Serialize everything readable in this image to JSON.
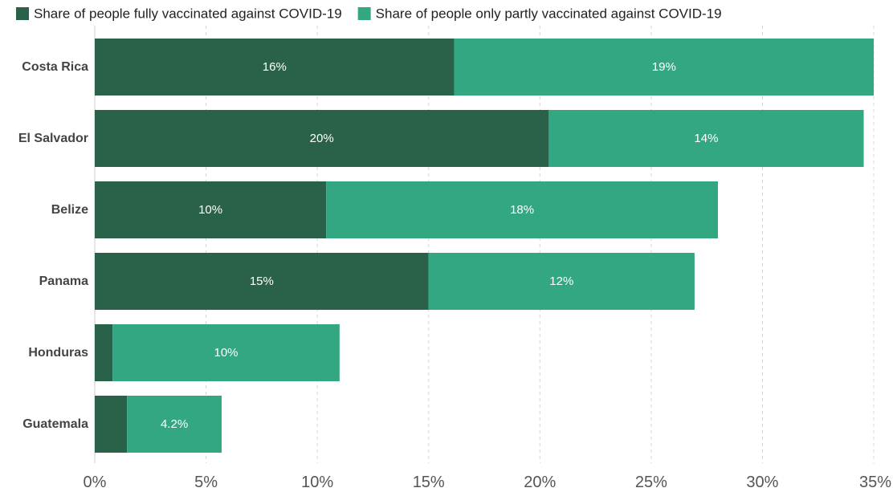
{
  "chart_data": {
    "type": "bar",
    "orientation": "horizontal",
    "stacked": true,
    "title": "",
    "xlabel": "",
    "ylabel": "",
    "xlim": [
      0,
      35
    ],
    "tick_values": [
      0,
      5,
      10,
      15,
      20,
      25,
      30,
      35
    ],
    "tick_labels": [
      "0%",
      "5%",
      "10%",
      "15%",
      "20%",
      "25%",
      "30%",
      "35%"
    ],
    "grid": "vertical dashed",
    "legend_position": "top-left",
    "categories": [
      "Costa Rica",
      "El Salvador",
      "Belize",
      "Panama",
      "Honduras",
      "Guatemala"
    ],
    "series": [
      {
        "name": "Share of people fully vaccinated against COVID-19",
        "color": "#2a6149",
        "values": [
          16.15,
          20.4,
          10.4,
          15.0,
          0.8,
          1.45
        ],
        "labels": [
          "16%",
          "20%",
          "10%",
          "15%",
          "",
          ""
        ]
      },
      {
        "name": "Share of people only partly vaccinated against COVID-19",
        "color": "#33a682",
        "values": [
          18.85,
          14.15,
          17.6,
          11.95,
          10.2,
          4.25
        ],
        "labels": [
          "19%",
          "14%",
          "18%",
          "12%",
          "10%",
          "4.2%"
        ]
      }
    ]
  }
}
